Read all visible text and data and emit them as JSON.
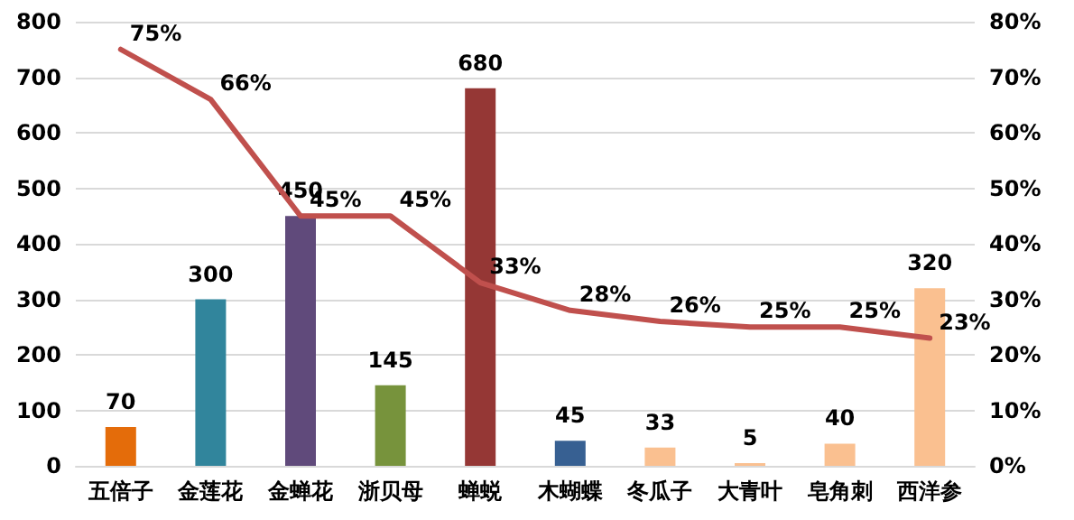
{
  "chart_data": {
    "type": "bar",
    "categories": [
      "五倍子",
      "金莲花",
      "金蝉花",
      "浙贝母",
      "蝉蜕",
      "木蝴蝶",
      "冬瓜子",
      "大青叶",
      "皂角刺",
      "西洋参"
    ],
    "series": [
      {
        "colors": [
          "#e46c0a",
          "#31859c",
          "#604a7b",
          "#77933c",
          "#953735",
          "#376092",
          "#fac090",
          "#fac090",
          "#fac090",
          "#fac090"
        ],
        "values": [
          70,
          300,
          450,
          145,
          680,
          45,
          33,
          5,
          40,
          320
        ],
        "value_labels": [
          "70",
          "300",
          "450",
          "145",
          "680",
          "45",
          "33",
          "5",
          "40",
          "320"
        ]
      },
      {
        "type": "line",
        "axis": "y2",
        "color": "#c0504d",
        "marker": "none",
        "values": [
          75,
          66,
          45,
          45,
          33,
          28,
          26,
          25,
          25,
          23
        ],
        "value_labels": [
          "75%",
          "66%",
          "45%",
          "45%",
          "33%",
          "28%",
          "26%",
          "25%",
          "25%",
          "23%"
        ]
      }
    ],
    "ylim": [
      0,
      800
    ],
    "yticks": [
      0,
      100,
      200,
      300,
      400,
      500,
      600,
      700,
      800
    ],
    "y2lim": [
      0,
      80
    ],
    "y2ticks": [
      {
        "value": 0,
        "label": "0%"
      },
      {
        "value": 10,
        "label": "10%"
      },
      {
        "value": 20,
        "label": "20%"
      },
      {
        "value": 30,
        "label": "30%"
      },
      {
        "value": 40,
        "label": "40%"
      },
      {
        "value": 50,
        "label": "50%"
      },
      {
        "value": 60,
        "label": "60%"
      },
      {
        "value": 70,
        "label": "70%"
      },
      {
        "value": 80,
        "label": "80%"
      }
    ],
    "grid": "y"
  }
}
